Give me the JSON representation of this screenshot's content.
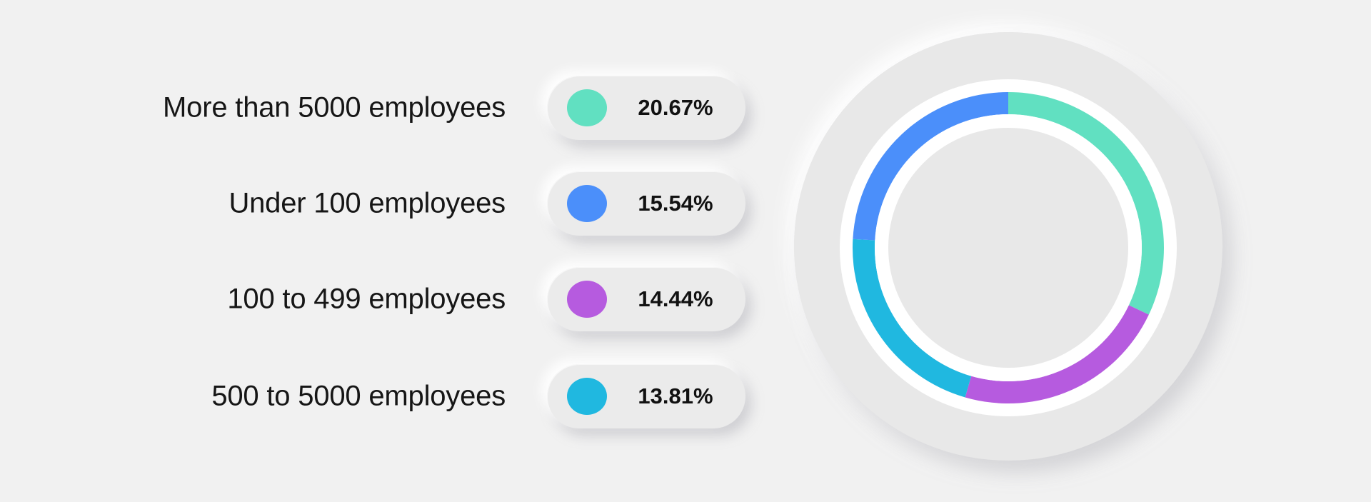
{
  "chart_data": {
    "type": "pie",
    "style": "donut",
    "categories": [
      "More than 5000 employees",
      "Under 100 employees",
      "100 to 499 employees",
      "500 to 5000 employees"
    ],
    "values": [
      20.67,
      15.54,
      14.44,
      13.81
    ],
    "value_labels": [
      "20.67%",
      "15.54%",
      "14.44%",
      "13.81%"
    ],
    "unit": "%",
    "colors": [
      "#61e0c1",
      "#4b8ffa",
      "#b65bdf",
      "#20b8e0"
    ],
    "donut_draw_order": [
      0,
      2,
      3,
      1
    ],
    "legend_placement": "left",
    "title": "",
    "grid": false
  }
}
